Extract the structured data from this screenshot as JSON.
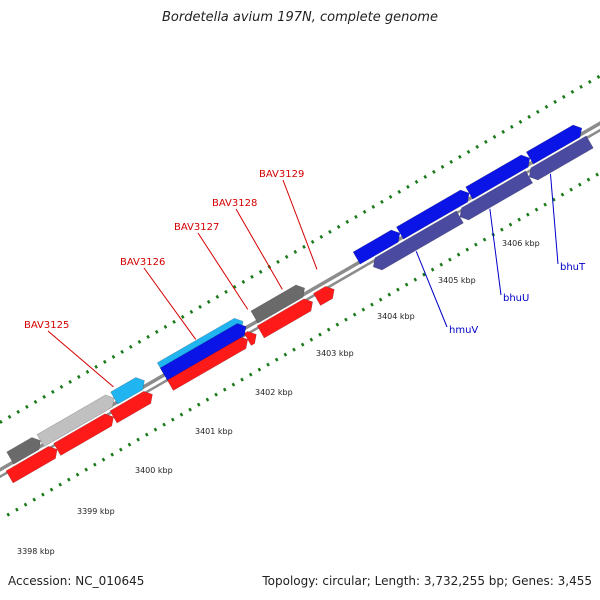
{
  "title": "Bordetella avium 197N, complete genome",
  "footer": {
    "accession": "Accession: NC_010645",
    "summary": "Topology: circular; Length: 3,732,255 bp; Genes: 3,455"
  },
  "colors": {
    "backbone": "#8c8c8c",
    "tick": "#1a7a1a",
    "red_gene": "#ff1a1a",
    "blue_gene": "#0a14e6",
    "navy_gene": "#4a4aa0",
    "cyan_gene": "#20b4f0",
    "gray_gene": "#6a6a6a",
    "lightgray_gene": "#c0c0c0",
    "red_label": "#d40000",
    "blue_label": "#0000c8"
  },
  "scale": {
    "tick_labels": [
      "3398 kbp",
      "3399 kbp",
      "3400 kbp",
      "3401 kbp",
      "3402 kbp",
      "3403 kbp",
      "3404 kbp",
      "3405 kbp",
      "3406 kbp"
    ]
  },
  "genes": [
    {
      "label": "BAV3125",
      "color": "red"
    },
    {
      "label": "BAV3126",
      "color": "red"
    },
    {
      "label": "BAV3127",
      "color": "red"
    },
    {
      "label": "BAV3128",
      "color": "red"
    },
    {
      "label": "BAV3129",
      "color": "red"
    },
    {
      "label": "hmuV",
      "color": "blue"
    },
    {
      "label": "bhuU",
      "color": "blue"
    },
    {
      "label": "bhuT",
      "color": "blue"
    }
  ]
}
